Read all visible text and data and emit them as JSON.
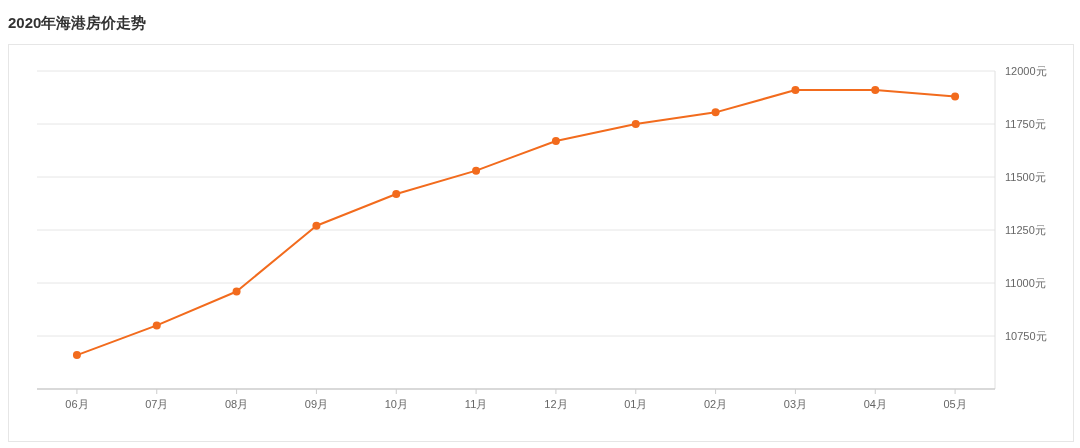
{
  "chart_data": {
    "type": "line",
    "title": "2020年海港房价走势",
    "categories": [
      "06月",
      "07月",
      "08月",
      "09月",
      "10月",
      "11月",
      "12月",
      "01月",
      "02月",
      "03月",
      "04月",
      "05月"
    ],
    "series": [
      {
        "color": "#f26b1d",
        "values": [
          10660,
          10800,
          10960,
          11270,
          11420,
          11530,
          11670,
          11750,
          11805,
          11910,
          11910,
          11880
        ]
      }
    ],
    "ylim": [
      10500,
      12000
    ],
    "yticks": [
      {
        "value": 10750,
        "label": "10750元"
      },
      {
        "value": 11000,
        "label": "11000元"
      },
      {
        "value": 11250,
        "label": "11250元"
      },
      {
        "value": 11500,
        "label": "11500元"
      },
      {
        "value": 11750,
        "label": "11750元"
      },
      {
        "value": 12000,
        "label": "12000元"
      }
    ],
    "grid": "y",
    "marker": "circle",
    "line_style": "solid"
  }
}
